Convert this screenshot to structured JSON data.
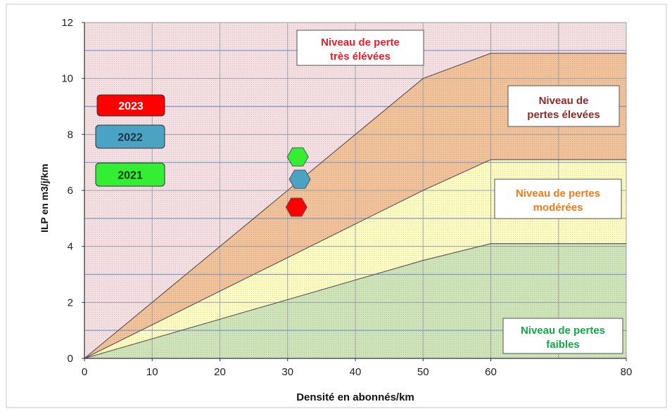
{
  "chart_data": {
    "type": "area",
    "xlabel": "Densité en abonnés/km",
    "ylabel": "ILP en m3/j/km",
    "xlim": [
      0,
      80
    ],
    "ylim": [
      0,
      12
    ],
    "x_ticks": [
      "0",
      "10",
      "20",
      "30",
      "40",
      "50",
      "60",
      "80"
    ],
    "y_ticks": [
      "0",
      "2",
      "4",
      "6",
      "8",
      "10",
      "12"
    ],
    "grid": true,
    "zones": [
      {
        "label": "Niveau de pertes faibles",
        "color": "#cfe4b8",
        "label_color": "#12a84a",
        "upper": [
          [
            0,
            0
          ],
          [
            10,
            0.7
          ],
          [
            20,
            1.4
          ],
          [
            30,
            2.1
          ],
          [
            40,
            2.8
          ],
          [
            50,
            3.5
          ],
          [
            60,
            4.1
          ],
          [
            80,
            4.1
          ]
        ]
      },
      {
        "label": "Niveau de pertes modérées",
        "color": "#fdfcc2",
        "label_color": "#f07c1c",
        "upper": [
          [
            0,
            0
          ],
          [
            10,
            1.2
          ],
          [
            20,
            2.4
          ],
          [
            30,
            3.6
          ],
          [
            40,
            4.8
          ],
          [
            50,
            6.0
          ],
          [
            60,
            7.1
          ],
          [
            80,
            7.1
          ]
        ]
      },
      {
        "label": "Niveau de pertes élevées",
        "color": "#f2c29a",
        "label_color": "#8e2a2a",
        "upper": [
          [
            0,
            0
          ],
          [
            10,
            2.0
          ],
          [
            20,
            4.0
          ],
          [
            30,
            6.0
          ],
          [
            40,
            8.0
          ],
          [
            50,
            10.0
          ],
          [
            60,
            10.9
          ],
          [
            80,
            10.9
          ]
        ]
      },
      {
        "label": "Niveau de perte très élévées",
        "color": "#f4dfe3",
        "label_color": "#ee1c2a",
        "upper": [
          [
            0,
            12
          ],
          [
            80,
            12
          ]
        ]
      }
    ],
    "points": [
      {
        "year": "2021",
        "x": 31.5,
        "y": 7.2,
        "color": "#33ee33"
      },
      {
        "year": "2022",
        "x": 31.8,
        "y": 6.4,
        "color": "#4ba3c3"
      },
      {
        "year": "2023",
        "x": 31.3,
        "y": 5.4,
        "color": "#ff0000"
      }
    ],
    "legend": [
      {
        "label": "2023",
        "color": "#ff0000",
        "text_color": "#ffffff"
      },
      {
        "label": "2022",
        "color": "#4ba3c3",
        "text_color": "#1e3446"
      },
      {
        "label": "2021",
        "color": "#33ee33",
        "text_color": "#1a3a10"
      }
    ],
    "legend_placement": "left"
  }
}
